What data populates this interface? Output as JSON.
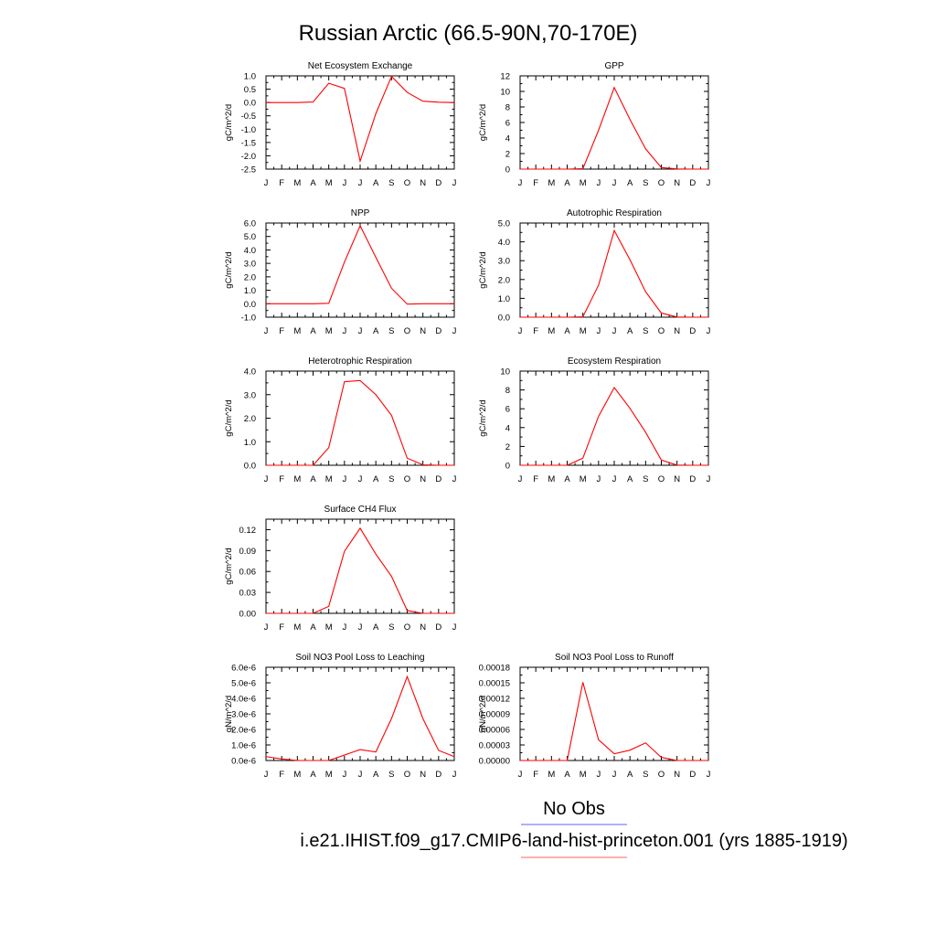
{
  "figure": {
    "title": "Russian Arctic (66.5-90N,70-170E)",
    "series_color": "#ff0000",
    "legend": [
      {
        "label": "No Obs",
        "color": "#8080ff"
      },
      {
        "label": "i.e21.IHIST.f09_g17.CMIP6-land-hist-princeton.001 (yrs 1885-1919)",
        "color": "#ff8080"
      }
    ]
  },
  "chart_data": [
    {
      "type": "line",
      "title": "Net Ecosystem Exchange",
      "ylabel": "gC/m^2/d",
      "categories": [
        "J",
        "F",
        "M",
        "A",
        "M",
        "J",
        "J",
        "A",
        "S",
        "O",
        "N",
        "D",
        "J"
      ],
      "ylim": [
        -2.5,
        1.0
      ],
      "yticks": [
        1.0,
        0.5,
        0.0,
        -0.5,
        -1.0,
        -1.5,
        -2.0,
        -2.5
      ],
      "ytick_labels": [
        "1.0",
        "0.5",
        "0.0",
        "-0.5",
        "-1.0",
        "-1.5",
        "-2.0",
        "-2.5"
      ],
      "series": [
        {
          "values": [
            0.0,
            0.0,
            0.0,
            0.02,
            0.72,
            0.53,
            -2.2,
            -0.42,
            0.98,
            0.38,
            0.05,
            0.01,
            0.0
          ]
        }
      ]
    },
    {
      "type": "line",
      "title": "GPP",
      "ylabel": "gC/m^2/d",
      "categories": [
        "J",
        "F",
        "M",
        "A",
        "M",
        "J",
        "J",
        "A",
        "S",
        "O",
        "N",
        "D",
        "J"
      ],
      "ylim": [
        0,
        12
      ],
      "yticks": [
        12,
        10,
        8,
        6,
        4,
        2,
        0
      ],
      "ytick_labels": [
        "12",
        "10",
        "8",
        "6",
        "4",
        "2",
        "0"
      ],
      "series": [
        {
          "values": [
            0,
            0,
            0,
            0,
            0.05,
            5.0,
            10.5,
            6.4,
            2.6,
            0.2,
            0.02,
            0,
            0
          ]
        }
      ]
    },
    {
      "type": "line",
      "title": "NPP",
      "ylabel": "gC/m^2/d",
      "categories": [
        "J",
        "F",
        "M",
        "A",
        "M",
        "J",
        "J",
        "A",
        "S",
        "O",
        "N",
        "D",
        "J"
      ],
      "ylim": [
        -1.0,
        6.0
      ],
      "yticks": [
        6.0,
        5.0,
        4.0,
        3.0,
        2.0,
        1.0,
        0.0,
        -1.0
      ],
      "ytick_labels": [
        "6.0",
        "5.0",
        "4.0",
        "3.0",
        "2.0",
        "1.0",
        "0.0",
        "-1.0"
      ],
      "series": [
        {
          "values": [
            0.0,
            0.0,
            0.0,
            0.0,
            0.03,
            3.1,
            5.8,
            3.45,
            1.15,
            -0.03,
            0.0,
            0.0,
            0.0
          ]
        }
      ]
    },
    {
      "type": "line",
      "title": "Autotrophic Respiration",
      "ylabel": "gC/m^2/d",
      "categories": [
        "J",
        "F",
        "M",
        "A",
        "M",
        "J",
        "J",
        "A",
        "S",
        "O",
        "N",
        "D",
        "J"
      ],
      "ylim": [
        0,
        5.0
      ],
      "yticks": [
        5.0,
        4.0,
        3.0,
        2.0,
        1.0,
        0.0
      ],
      "ytick_labels": [
        "5.0",
        "4.0",
        "3.0",
        "2.0",
        "1.0",
        "0.0"
      ],
      "series": [
        {
          "values": [
            0,
            0,
            0,
            0,
            0.02,
            1.7,
            4.6,
            3.05,
            1.35,
            0.22,
            0.01,
            0,
            0
          ]
        }
      ]
    },
    {
      "type": "line",
      "title": "Heterotrophic Respiration",
      "ylabel": "gC/m^2/d",
      "categories": [
        "J",
        "F",
        "M",
        "A",
        "M",
        "J",
        "J",
        "A",
        "S",
        "O",
        "N",
        "D",
        "J"
      ],
      "ylim": [
        0,
        4.0
      ],
      "yticks": [
        4.0,
        3.0,
        2.0,
        1.0,
        0.0
      ],
      "ytick_labels": [
        "4.0",
        "3.0",
        "2.0",
        "1.0",
        "0.0"
      ],
      "series": [
        {
          "values": [
            0,
            0,
            0,
            0,
            0.75,
            3.55,
            3.6,
            3.0,
            2.12,
            0.3,
            0.02,
            0,
            0
          ]
        }
      ]
    },
    {
      "type": "line",
      "title": "Ecosystem Respiration",
      "ylabel": "gC/m^2/d",
      "categories": [
        "J",
        "F",
        "M",
        "A",
        "M",
        "J",
        "J",
        "A",
        "S",
        "O",
        "N",
        "D",
        "J"
      ],
      "ylim": [
        0,
        10
      ],
      "yticks": [
        10,
        8,
        6,
        4,
        2,
        0
      ],
      "ytick_labels": [
        "10",
        "8",
        "6",
        "4",
        "2",
        "0"
      ],
      "series": [
        {
          "values": [
            0,
            0,
            0,
            0,
            0.75,
            5.2,
            8.25,
            6.05,
            3.5,
            0.55,
            0.02,
            0,
            0
          ]
        }
      ]
    },
    {
      "type": "line",
      "title": "Surface CH4 Flux",
      "ylabel": "gC/m^2/d",
      "categories": [
        "J",
        "F",
        "M",
        "A",
        "M",
        "J",
        "J",
        "A",
        "S",
        "O",
        "N",
        "D",
        "J"
      ],
      "ylim": [
        0,
        0.135
      ],
      "yticks": [
        0.12,
        0.09,
        0.06,
        0.03,
        0.0
      ],
      "ytick_labels": [
        "0.12",
        "0.09",
        "0.06",
        "0.03",
        "0.00"
      ],
      "series": [
        {
          "values": [
            0,
            0,
            0,
            0,
            0.01,
            0.089,
            0.122,
            0.085,
            0.053,
            0.004,
            0.0,
            0,
            0
          ]
        }
      ]
    },
    {
      "type": "line",
      "title": "Soil NO3 Pool Loss to Leaching",
      "ylabel": "gN/m^2/d",
      "categories": [
        "J",
        "F",
        "M",
        "A",
        "M",
        "J",
        "J",
        "A",
        "S",
        "O",
        "N",
        "D",
        "J"
      ],
      "ylim": [
        0,
        6e-06
      ],
      "yticks": [
        6e-06,
        5e-06,
        4e-06,
        3e-06,
        2e-06,
        1e-06,
        0.0
      ],
      "ytick_labels": [
        "6.0e-6",
        "5.0e-6",
        "4.0e-6",
        "3.0e-6",
        "2.0e-6",
        "1.0e-6",
        "0.0e-6"
      ],
      "series": [
        {
          "values": [
            2.5e-07,
            1e-07,
            0.0,
            0.0,
            0.0,
            3.5e-07,
            7e-07,
            5.5e-07,
            2.7e-06,
            5.4e-06,
            2.7e-06,
            6.5e-07,
            2.5e-07
          ]
        }
      ]
    },
    {
      "type": "line",
      "title": "Soil NO3 Pool Loss to Runoff",
      "ylabel": "gN/m^2/d",
      "categories": [
        "J",
        "F",
        "M",
        "A",
        "M",
        "J",
        "J",
        "A",
        "S",
        "O",
        "N",
        "D",
        "J"
      ],
      "ylim": [
        0,
        0.00018
      ],
      "yticks": [
        0.00018,
        0.00015,
        0.00012,
        9e-05,
        6e-05,
        3e-05,
        0.0
      ],
      "ytick_labels": [
        "0.00018",
        "0.00015",
        "0.00012",
        "0.00009",
        "0.00006",
        "0.00003",
        "0.00000"
      ],
      "series": [
        {
          "values": [
            0,
            0,
            0,
            0,
            0.000151,
            4e-05,
            1.3e-05,
            2e-05,
            3.4e-05,
            6e-06,
            0,
            0,
            0
          ]
        }
      ]
    }
  ]
}
